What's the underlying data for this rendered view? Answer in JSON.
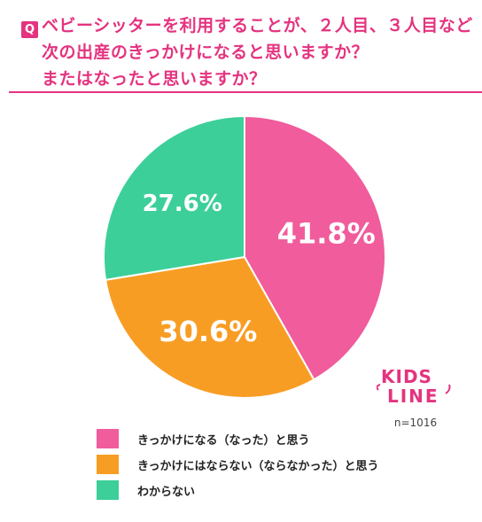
{
  "question": {
    "badge": "Q",
    "lines": [
      "ベビーシッターを利用することが、２人目、３人目など",
      "次の出産のきっかけになると思いますか？",
      "またはなったと思いますか？"
    ],
    "accent_color": "#e4337f"
  },
  "chart_data": {
    "type": "pie",
    "title": "ベビーシッターを利用することが、２人目、３人目など次の出産のきっかけになると思いますか？またはなったと思いますか？",
    "categories": [
      "きっかけになる（なった）と思う",
      "きっかけにはならない（ならなかった）と思う",
      "わからない"
    ],
    "values": [
      41.8,
      30.6,
      27.6
    ],
    "value_labels": [
      "41.8%",
      "30.6%",
      "27.6%"
    ],
    "colors": [
      "#f05c9c",
      "#f89d24",
      "#3ccf9a"
    ],
    "start_angle": "12 o'clock",
    "direction": "clockwise",
    "legend_position": "bottom-left"
  },
  "sample_size": "n=1016",
  "logo": {
    "text_top": "KIDS",
    "text_bottom": "LINE",
    "color": "#e4337f"
  }
}
